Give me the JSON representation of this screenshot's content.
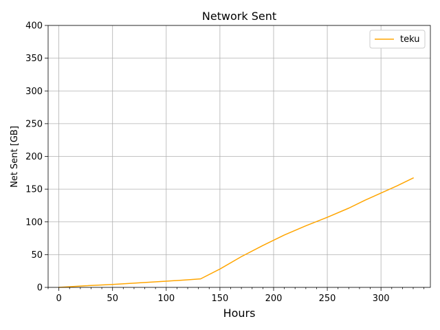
{
  "chart_data": {
    "type": "line",
    "title": "Network Sent",
    "xlabel": "Hours",
    "ylabel": "Net Sent [GB]",
    "xlim": [
      -10,
      346
    ],
    "ylim": [
      0,
      400
    ],
    "xticks": [
      0,
      50,
      100,
      150,
      200,
      250,
      300
    ],
    "yticks": [
      0,
      50,
      100,
      150,
      200,
      250,
      300,
      350,
      400
    ],
    "x_minor_ticks": true,
    "grid": true,
    "legend_position": "upper right",
    "series": [
      {
        "name": "teku",
        "color": "#ffa500",
        "x": [
          0,
          25,
          50,
          75,
          100,
          120,
          132,
          150,
          170,
          190,
          210,
          230,
          250,
          270,
          285,
          300,
          315,
          330
        ],
        "y": [
          0,
          2.5,
          4.5,
          7,
          9.5,
          11.5,
          13,
          28,
          47,
          64,
          80,
          94,
          107,
          121,
          133,
          144,
          155,
          167
        ]
      }
    ]
  }
}
